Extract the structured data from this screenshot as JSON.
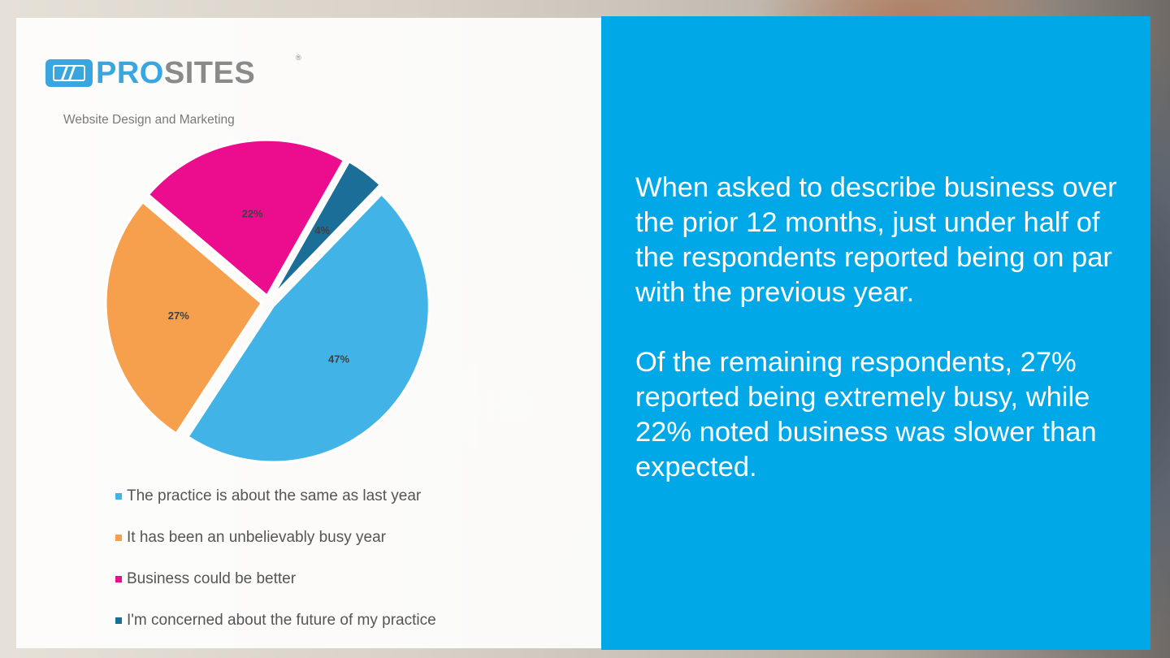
{
  "brand": {
    "name_part1": "PRO",
    "name_part2": "SITES",
    "registered": "®",
    "tagline": "Website Design and Marketing",
    "colors": {
      "primary": "#3aa6df",
      "gray": "#8a8a8a"
    }
  },
  "chart_data": {
    "type": "pie",
    "title": "",
    "start_angle_deg": -46,
    "slices": [
      {
        "label": "The practice is about the same as last year",
        "value": 47,
        "display": "47%",
        "color": "#41b3e6"
      },
      {
        "label": "It has been an unbelievably busy year",
        "value": 27,
        "display": "27%",
        "color": "#f6a04d"
      },
      {
        "label": "Business could be better",
        "value": 22,
        "display": "22%",
        "color": "#ec0c8e"
      },
      {
        "label": "I'm concerned about the future of my practice",
        "value": 4,
        "display": "4%",
        "color": "#1b6e98"
      }
    ],
    "legend_position": "bottom",
    "exploded": true
  },
  "panel": {
    "background": "#00a8e8",
    "paragraphs": [
      "When asked to describe business over the prior 12 months, just under half of the respondents reported being on par with the previous year.",
      "Of the remaining respondents, 27% reported being extremely busy, while 22% noted business was slower than expected."
    ]
  }
}
